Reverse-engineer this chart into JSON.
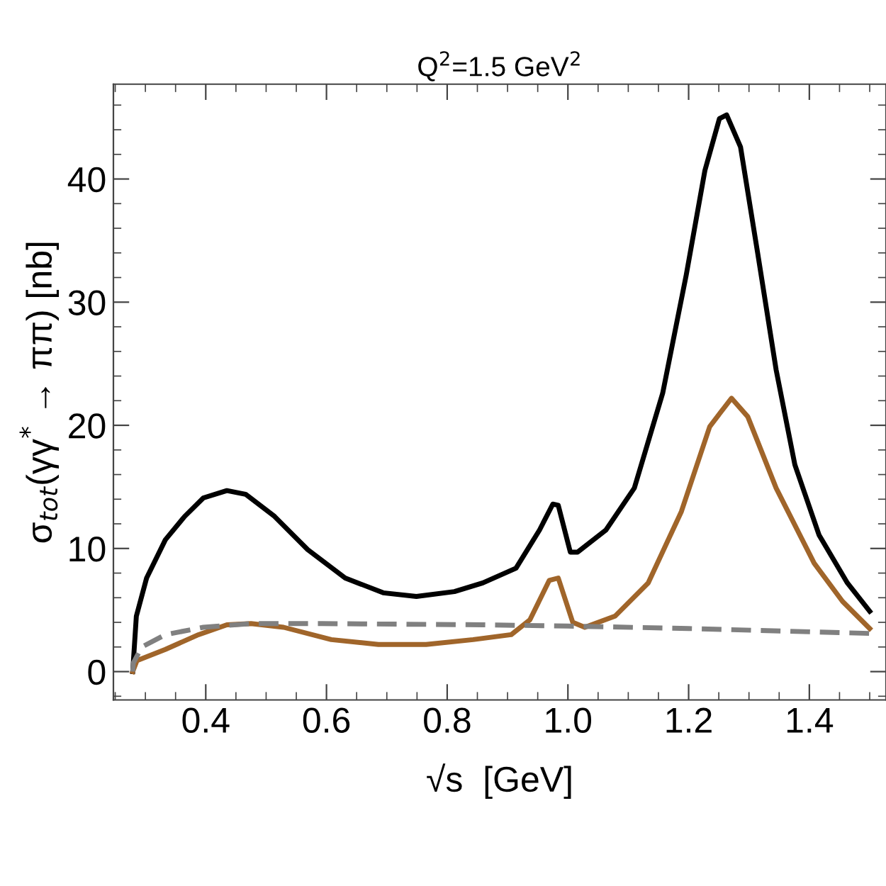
{
  "chart_data": {
    "type": "line",
    "title": "Q$^{2}$=1.5 GeV$^{2}$",
    "xlabel": "√s  [GeV]",
    "ylabel": "σ$_{tot}$(γγ$^{*}$ → ππ) [nb]",
    "xlim": [
      0.247,
      1.527
    ],
    "ylim": [
      -2.3,
      47.7
    ],
    "xticks": [
      {
        "value": 0.25,
        "label": null
      },
      {
        "value": 0.3,
        "label": null
      },
      {
        "value": 0.35,
        "label": null
      },
      0.4,
      {
        "value": 0.45,
        "label": null
      },
      {
        "value": 0.5,
        "label": null
      },
      {
        "value": 0.55,
        "label": null
      },
      0.6,
      {
        "value": 0.65,
        "label": null
      },
      {
        "value": 0.7,
        "label": null
      },
      {
        "value": 0.75,
        "label": null
      },
      0.8,
      {
        "value": 0.85,
        "label": null
      },
      {
        "value": 0.9,
        "label": null
      },
      {
        "value": 0.95,
        "label": null
      },
      {
        "value": 1.0,
        "label": "1.0"
      },
      {
        "value": 1.05,
        "label": null
      },
      {
        "value": 1.1,
        "label": null
      },
      {
        "value": 1.15,
        "label": null
      },
      1.2,
      {
        "value": 1.25,
        "label": null
      },
      {
        "value": 1.3,
        "label": null
      },
      {
        "value": 1.35,
        "label": null
      },
      1.4,
      {
        "value": 1.45,
        "label": null
      },
      {
        "value": 1.5,
        "label": null
      }
    ],
    "yticks": [
      {
        "value": -2,
        "label": null
      },
      0,
      {
        "value": 2,
        "label": null
      },
      {
        "value": 4,
        "label": null
      },
      {
        "value": 6,
        "label": null
      },
      {
        "value": 8,
        "label": null
      },
      10,
      {
        "value": 12,
        "label": null
      },
      {
        "value": 14,
        "label": null
      },
      {
        "value": 16,
        "label": null
      },
      {
        "value": 18,
        "label": null
      },
      20,
      {
        "value": 22,
        "label": null
      },
      {
        "value": 24,
        "label": null
      },
      {
        "value": 26,
        "label": null
      },
      {
        "value": 28,
        "label": null
      },
      30,
      {
        "value": 32,
        "label": null
      },
      {
        "value": 34,
        "label": null
      },
      {
        "value": 36,
        "label": null
      },
      {
        "value": 38,
        "label": null
      },
      40,
      {
        "value": 42,
        "label": null
      },
      {
        "value": 44,
        "label": null
      },
      {
        "value": 46,
        "label": null
      }
    ],
    "grid": false,
    "legend": false,
    "marker": "none",
    "series": [
      {
        "color": "#000000",
        "line_style": "solid",
        "x": [
          0.279,
          0.285,
          0.302,
          0.333,
          0.365,
          0.396,
          0.435,
          0.466,
          0.514,
          0.569,
          0.631,
          0.694,
          0.749,
          0.812,
          0.859,
          0.914,
          0.953,
          0.975,
          0.984,
          1.004,
          1.016,
          1.063,
          1.11,
          1.157,
          1.196,
          1.227,
          1.251,
          1.263,
          1.286,
          1.314,
          1.345,
          1.376,
          1.416,
          1.463,
          1.5
        ],
        "values": [
          0,
          4.5,
          7.6,
          10.7,
          12.6,
          14.1,
          14.7,
          14.4,
          12.6,
          9.9,
          7.6,
          6.4,
          6.1,
          6.5,
          7.2,
          8.4,
          11.5,
          13.6,
          13.5,
          9.7,
          9.7,
          11.5,
          14.9,
          22.6,
          32.2,
          40.7,
          44.9,
          45.2,
          42.6,
          34.1,
          24.5,
          16.8,
          11.1,
          7.2,
          4.9
        ]
      },
      {
        "color": "#a0652a",
        "line_style": "solid",
        "x": [
          0.279,
          0.286,
          0.333,
          0.388,
          0.435,
          0.475,
          0.529,
          0.608,
          0.686,
          0.765,
          0.843,
          0.906,
          0.937,
          0.969,
          0.984,
          1.008,
          1.028,
          1.078,
          1.133,
          1.188,
          1.235,
          1.271,
          1.298,
          1.345,
          1.408,
          1.455,
          1.5
        ],
        "values": [
          0,
          0.9,
          1.8,
          3.0,
          3.8,
          3.9,
          3.6,
          2.6,
          2.2,
          2.2,
          2.6,
          3.0,
          4.2,
          7.4,
          7.6,
          4.0,
          3.6,
          4.5,
          7.2,
          13.0,
          19.9,
          22.2,
          20.7,
          14.9,
          8.8,
          5.7,
          3.5
        ]
      },
      {
        "color": "#808080",
        "line_style": "dashed",
        "x": [
          0.279,
          0.28,
          0.294,
          0.333,
          0.396,
          0.475,
          0.592,
          0.859,
          1.0,
          1.2,
          1.5
        ],
        "values": [
          0,
          0.7,
          2.0,
          3.0,
          3.6,
          3.9,
          3.9,
          3.8,
          3.7,
          3.5,
          3.1
        ]
      }
    ]
  }
}
